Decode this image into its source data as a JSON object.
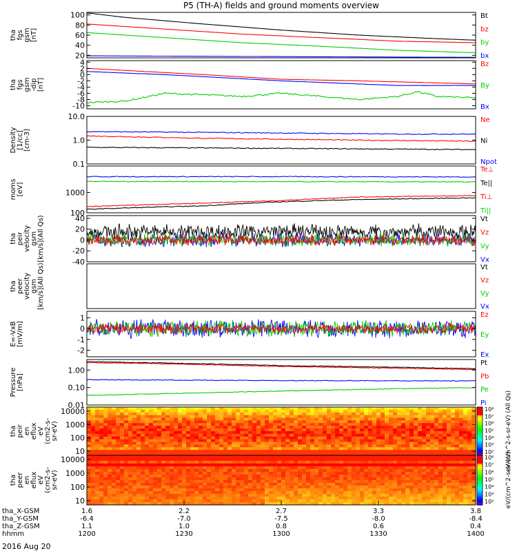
{
  "title": "P5 (TH-A) fields and ground moments overview",
  "date_label": "2016 Aug 20",
  "colors": {
    "black": "#000000",
    "red": "#ff0000",
    "green": "#00cc00",
    "blue": "#0000ff"
  },
  "chart_data": [
    {
      "type": "line",
      "ylabel": [
        "tha",
        "fgs",
        "gsm",
        "[nT]"
      ],
      "ylim": [
        15,
        105
      ],
      "ticks": [
        "100",
        "80",
        "60",
        "40",
        "20"
      ],
      "tick_values": [
        100,
        80,
        60,
        40,
        20
      ],
      "legend": [
        {
          "label": "Bt",
          "color": "black"
        },
        {
          "label": "bz",
          "color": "red"
        },
        {
          "label": "by",
          "color": "green"
        },
        {
          "label": "bx",
          "color": "blue"
        }
      ],
      "series": [
        {
          "name": "Bt",
          "color": "black",
          "x": [
            0,
            0.1,
            0.3,
            0.5,
            0.7,
            0.9,
            1
          ],
          "values": [
            104,
            95,
            82,
            70,
            60,
            53,
            50
          ]
        },
        {
          "name": "bz",
          "color": "red",
          "x": [
            0,
            0.2,
            0.4,
            0.6,
            0.8,
            1
          ],
          "values": [
            82,
            72,
            62,
            55,
            48,
            45
          ]
        },
        {
          "name": "by",
          "color": "green",
          "x": [
            0,
            0.2,
            0.4,
            0.6,
            0.8,
            1
          ],
          "values": [
            65,
            55,
            45,
            38,
            30,
            25
          ]
        },
        {
          "name": "bx",
          "color": "blue",
          "x": [
            0,
            1
          ],
          "values": [
            19,
            16
          ]
        }
      ]
    },
    {
      "type": "line",
      "ylabel": [
        "tha",
        "fgs",
        "gsm",
        "-dip",
        "[nT]"
      ],
      "ylim": [
        -11,
        4.5
      ],
      "ticks": [
        "4",
        "2",
        "0",
        "-2",
        "-4",
        "-6",
        "-8",
        "-10"
      ],
      "tick_values": [
        4,
        2,
        0,
        -2,
        -4,
        -6,
        -8,
        -10
      ],
      "legend": [
        {
          "label": "Bz",
          "color": "red"
        },
        {
          "label": "By",
          "color": "green"
        },
        {
          "label": "Bx",
          "color": "blue"
        }
      ],
      "series": [
        {
          "name": "Bz",
          "color": "red",
          "x": [
            0,
            0.15,
            0.3,
            0.5,
            0.7,
            0.85,
            1
          ],
          "values": [
            2,
            1,
            0,
            -1.5,
            -2,
            -2.5,
            -3
          ]
        },
        {
          "name": "By",
          "color": "green",
          "x": [
            0,
            0.1,
            0.2,
            0.3,
            0.4,
            0.5,
            0.6,
            0.7,
            0.8,
            0.85,
            0.9,
            1
          ],
          "values": [
            -9,
            -8.5,
            -6,
            -6.5,
            -7,
            -6,
            -7,
            -8,
            -7,
            -5.5,
            -7,
            -7.5
          ]
        },
        {
          "name": "Bx",
          "color": "blue",
          "x": [
            0,
            0.2,
            0.5,
            0.8,
            1
          ],
          "values": [
            1,
            0,
            -2,
            -3.5,
            -3.5
          ]
        }
      ]
    },
    {
      "type": "line",
      "ylabel": [
        "Density",
        "[1/cc]",
        "[cm-3]"
      ],
      "log": true,
      "ylim": [
        0.1,
        10
      ],
      "ticks": [
        "10.0",
        "1.0",
        "0.1"
      ],
      "tick_values": [
        10,
        1,
        0.1
      ],
      "legend": [
        {
          "label": "Ne",
          "color": "red"
        },
        {
          "label": "Ni",
          "color": "black"
        },
        {
          "label": "Npot",
          "color": "blue"
        }
      ],
      "series": [
        {
          "name": "Ne",
          "color": "red",
          "x": [
            0,
            0.3,
            0.5,
            0.7,
            1
          ],
          "values": [
            1.5,
            1.2,
            1.1,
            1.0,
            0.9
          ]
        },
        {
          "name": "Ni",
          "color": "black",
          "x": [
            0,
            0.5,
            1
          ],
          "values": [
            0.5,
            0.45,
            0.4
          ]
        },
        {
          "name": "Npot",
          "color": "blue",
          "x": [
            0,
            0.5,
            0.8,
            1
          ],
          "values": [
            2.3,
            2.0,
            1.8,
            1.8
          ]
        }
      ]
    },
    {
      "type": "line",
      "ylabel": [
        "moms",
        "[eV]"
      ],
      "log": true,
      "ylim": [
        100,
        20000
      ],
      "ticks": [
        "1000",
        "100"
      ],
      "tick_values": [
        1000,
        100
      ],
      "legend": [
        {
          "label": "Te⊥",
          "color": "red"
        },
        {
          "label": "Te||",
          "color": "black"
        },
        {
          "label": "Ti⊥",
          "color": "red"
        },
        {
          "label": "Ti||",
          "color": "green"
        }
      ],
      "series": [
        {
          "name": "Ti⊥",
          "color": "blue",
          "x": [
            0,
            0.5,
            1
          ],
          "values": [
            6000,
            6000,
            5800
          ]
        },
        {
          "name": "Ti||",
          "color": "green",
          "x": [
            0,
            0.5,
            1
          ],
          "values": [
            3500,
            3400,
            3300
          ]
        },
        {
          "name": "Te⊥",
          "color": "red",
          "x": [
            0,
            0.3,
            0.5,
            0.7,
            1
          ],
          "values": [
            200,
            300,
            400,
            600,
            700
          ]
        },
        {
          "name": "Te||",
          "color": "black",
          "x": [
            0,
            0.3,
            0.5,
            0.7,
            1
          ],
          "values": [
            150,
            220,
            350,
            450,
            550
          ]
        }
      ]
    },
    {
      "type": "line",
      "ylabel": [
        "tha",
        "peir",
        "velocity",
        "gsm",
        "[km/s](All Qs)"
      ],
      "ylim": [
        -40,
        45
      ],
      "ticks": [
        "40",
        "20",
        "0",
        "-20",
        "-40"
      ],
      "tick_values": [
        40,
        20,
        0,
        -20,
        -40
      ],
      "legend": [
        {
          "label": "Vt",
          "color": "black"
        },
        {
          "label": "Vz",
          "color": "red"
        },
        {
          "label": "Vy",
          "color": "green"
        },
        {
          "label": "Vx",
          "color": "blue"
        }
      ],
      "noise": [
        {
          "color": "black",
          "center": 15,
          "amp": 12
        },
        {
          "color": "blue",
          "center": 0,
          "amp": 10
        },
        {
          "color": "green",
          "center": 0,
          "amp": 10
        },
        {
          "color": "red",
          "center": 0,
          "amp": 8
        }
      ]
    },
    {
      "type": "line",
      "ylabel": [
        "tha",
        "peer",
        "velocity",
        "gsm",
        "[km/s](All Qs)"
      ],
      "legend": [
        {
          "label": "Vt",
          "color": "black"
        },
        {
          "label": "Vz",
          "color": "red"
        },
        {
          "label": "Vy",
          "color": "green"
        },
        {
          "label": "Vx",
          "color": "blue"
        }
      ]
    },
    {
      "type": "line",
      "ylabel": [
        "E=-VxB",
        "[mV/m]"
      ],
      "ylim": [
        -2.6,
        1.6
      ],
      "ticks": [
        "1",
        "0",
        "-1",
        "-2"
      ],
      "tick_values": [
        1,
        0,
        -1,
        -2
      ],
      "legend": [
        {
          "label": "Ez",
          "color": "red"
        },
        {
          "label": "Ey",
          "color": "green"
        },
        {
          "label": "Ex",
          "color": "blue"
        }
      ],
      "noise": [
        {
          "color": "blue",
          "center": 0,
          "amp": 0.7
        },
        {
          "color": "green",
          "center": 0,
          "amp": 0.6
        },
        {
          "color": "red",
          "center": 0,
          "amp": 0.4
        }
      ]
    },
    {
      "type": "line",
      "ylabel": [
        "Pressure",
        "[nPa]"
      ],
      "log": true,
      "ylim": [
        0.01,
        4
      ],
      "ticks": [
        "1.00",
        "0.10",
        "0.01"
      ],
      "tick_values": [
        1,
        0.1,
        0.01
      ],
      "legend": [
        {
          "label": "Pt",
          "color": "black"
        },
        {
          "label": "Pb",
          "color": "red"
        },
        {
          "label": "Pe",
          "color": "green"
        },
        {
          "label": "Pi",
          "color": "blue"
        }
      ],
      "series": [
        {
          "name": "Pt",
          "color": "black",
          "x": [
            0,
            0.5,
            1
          ],
          "values": [
            3,
            1.8,
            1.2
          ]
        },
        {
          "name": "Pb",
          "color": "red",
          "x": [
            0,
            0.5,
            1
          ],
          "values": [
            2.7,
            1.6,
            1.05
          ]
        },
        {
          "name": "Pi",
          "color": "blue",
          "x": [
            0,
            0.5,
            1
          ],
          "values": [
            0.28,
            0.25,
            0.24
          ]
        },
        {
          "name": "Pe",
          "color": "green",
          "x": [
            0,
            0.3,
            0.6,
            1
          ],
          "values": [
            0.035,
            0.05,
            0.07,
            0.1
          ]
        }
      ]
    },
    {
      "type": "heatmap",
      "ylabel": [
        "tha",
        "peir",
        "en",
        "eflux",
        "eV",
        "(cm2-s-",
        "sr-eV)"
      ],
      "log": true,
      "ylim": [
        5,
        20000
      ],
      "ticks": [
        "10000",
        "1000",
        "100",
        "10"
      ],
      "tick_values": [
        10000,
        1000,
        100,
        10
      ],
      "colorbar": {
        "labels": [
          "10⁸",
          "10⁷",
          "10⁶",
          "10⁵",
          "10⁴",
          "10³",
          "10²"
        ],
        "title": "eV/(cm^2-s-sr-eV) (All Qs)"
      }
    },
    {
      "type": "heatmap",
      "ylabel": [
        "tha",
        "peer",
        "en",
        "eflux",
        "eV",
        "(cm2-s-",
        "sr-eV)"
      ],
      "log": true,
      "ylim": [
        5,
        20000
      ],
      "ticks": [
        "10000",
        "1000",
        "100",
        "10"
      ],
      "tick_values": [
        10000,
        1000,
        100,
        10
      ],
      "colorbar": {
        "labels": [
          "10⁸",
          "10⁷",
          "10⁶",
          "10⁵",
          "10⁴",
          "10³",
          "10²"
        ],
        "title": "eV/(cm^2-s-sr-eV)"
      }
    }
  ],
  "xaxis": {
    "rows": [
      {
        "label": "tha_X-GSM",
        "values": [
          "1.6",
          "2.2",
          "2.7",
          "3.3",
          "3.8"
        ]
      },
      {
        "label": "tha_Y-GSM",
        "values": [
          "-6.4",
          "-7.0",
          "-7.5",
          "-8.0",
          "-8.4"
        ]
      },
      {
        "label": "tha_Z-GSM",
        "values": [
          "1.1",
          "1.0",
          "0.8",
          "0.6",
          "0.4"
        ]
      },
      {
        "label": "hhmm",
        "values": [
          "1200",
          "1230",
          "1300",
          "1330",
          "1400"
        ]
      }
    ],
    "tick_positions": [
      0,
      0.25,
      0.5,
      0.75,
      1
    ]
  },
  "colorbar_caption": "[eV/(cm^2-s-sr-eV)]"
}
